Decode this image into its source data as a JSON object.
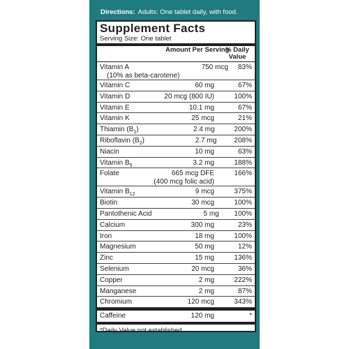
{
  "directions": {
    "label": "Directions:",
    "text": "Adults:  One tablet daily, with food."
  },
  "panel": {
    "title": "Supplement Facts",
    "serving_size": "Serving Size: One tablet",
    "header": {
      "amount": "Amount Per Serving",
      "dv": "% Daily Value"
    },
    "rows": [
      {
        "name": "Vitamin A",
        "note": "(10% as beta-carotene)",
        "amount": "750 mcg",
        "dv": "83%"
      },
      {
        "name": "Vitamin C",
        "amount": "60 mg",
        "dv": "67%"
      },
      {
        "name": "Vitamin D",
        "amount": "20 mcg (800 IU)",
        "dv": "100%"
      },
      {
        "name": "Vitamin E",
        "amount": "10.1 mg",
        "dv": "67%"
      },
      {
        "name": "Vitamin K",
        "amount": "25 mcg",
        "dv": "21%"
      },
      {
        "name": "Thiamin (B",
        "sub": "1",
        "name_end": ")",
        "amount": "2.4 mg",
        "dv": "200%"
      },
      {
        "name": "Riboflavin (B",
        "sub": "2",
        "name_end": ")",
        "amount": "2.7 mg",
        "dv": "208%"
      },
      {
        "name": "Niacin",
        "amount": "10 mg",
        "dv": "63%"
      },
      {
        "name": "Vitamin B",
        "sub": "5",
        "amount": "3.2 mg",
        "dv": "188%"
      },
      {
        "name": "Folate",
        "amount": "665 mcg DFE",
        "amount_note": "(400 mcg folic acid)",
        "dv": "166%"
      },
      {
        "name": "Vitamin B",
        "sub": "12",
        "amount": "9 mcg",
        "dv": "375%"
      },
      {
        "name": "Biotin",
        "amount": "30 mcg",
        "dv": "100%"
      },
      {
        "name": "Pantothenic Acid",
        "amount": "5 mg",
        "dv": "100%"
      },
      {
        "name": "Calcium",
        "amount": "300 mg",
        "dv": "23%"
      },
      {
        "name": "Iron",
        "amount": "18 mg",
        "dv": "100%"
      },
      {
        "name": "Magnesium",
        "amount": "50 mg",
        "dv": "12%"
      },
      {
        "name": "Zinc",
        "amount": "15 mg",
        "dv": "136%"
      },
      {
        "name": "Selenium",
        "amount": "20 mcg",
        "dv": "36%"
      },
      {
        "name": "Copper",
        "amount": "2 mg",
        "dv": "222%"
      },
      {
        "name": "Manganese",
        "amount": "2 mg",
        "dv": "87%"
      },
      {
        "name": "Chromium",
        "amount": "120 mcg",
        "dv": "343%"
      }
    ],
    "extra_row": {
      "name": "Caffeine",
      "amount": "120 mg",
      "dv": "*"
    },
    "footnote": "*Daily Value not established."
  }
}
